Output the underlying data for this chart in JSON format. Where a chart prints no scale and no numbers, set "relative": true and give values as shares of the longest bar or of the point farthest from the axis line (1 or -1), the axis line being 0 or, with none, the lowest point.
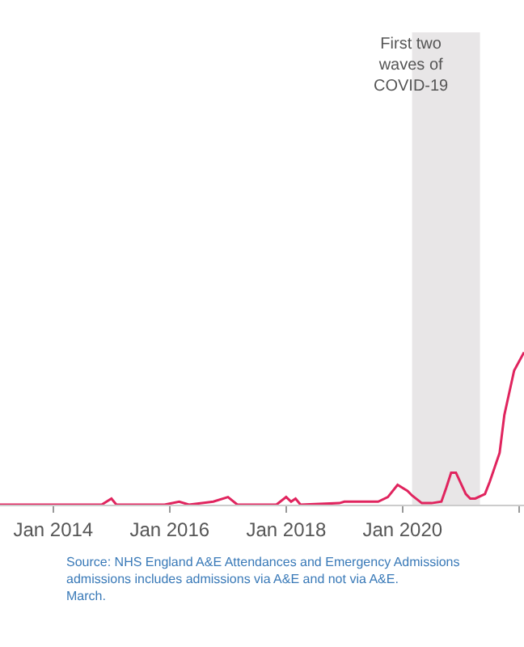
{
  "chart_data": {
    "type": "line",
    "relative": true,
    "x": [
      "2013-02",
      "2014-11",
      "2015-01",
      "2015-02",
      "2015-12",
      "2016-03",
      "2016-05",
      "2016-10",
      "2017-01",
      "2017-03",
      "2017-11",
      "2018-01",
      "2018-02",
      "2018-03",
      "2018-04",
      "2018-12",
      "2019-01",
      "2019-08",
      "2019-10",
      "2019-12",
      "2020-02",
      "2020-03",
      "2020-05",
      "2020-07",
      "2020-09",
      "2020-10",
      "2020-11",
      "2020-12",
      "2021-02",
      "2021-03",
      "2021-04",
      "2021-06",
      "2021-07",
      "2021-09",
      "2021-10",
      "2021-12",
      "2022-02"
    ],
    "series": [
      {
        "color": "#e0245e",
        "values": [
          0,
          0,
          0.04,
          0,
          0,
          0.02,
          0,
          0.02,
          0.05,
          0,
          0,
          0.05,
          0.02,
          0.04,
          0,
          0.01,
          0.02,
          0.02,
          0.05,
          0.13,
          0.09,
          0.06,
          0.01,
          0.01,
          0.02,
          0.11,
          0.21,
          0.21,
          0.07,
          0.04,
          0.04,
          0.07,
          0.15,
          0.34,
          0.59,
          0.88,
          1
        ]
      }
    ],
    "xlim": [
      "2013-02",
      "2022-02"
    ],
    "xticks": [
      {
        "value": "2014-01",
        "label": "Jan 2014"
      },
      {
        "value": "2016-01",
        "label": "Jan 2016"
      },
      {
        "value": "2018-01",
        "label": "Jan 2018"
      },
      {
        "value": "2020-01",
        "label": "Jan 2020"
      },
      {
        "value": "2022-01",
        "label": null
      }
    ],
    "bands": [
      {
        "axis": "x",
        "from": "2020-03",
        "to": "2021-05",
        "label": "First two\nwaves of\nCOVID-19",
        "color": "#e8e6e7"
      }
    ],
    "annotations": [
      "Source: NHS England A&E Attendances and Emergency Admissions\nadmissions includes admissions via A&E and not via A&E.\nMarch."
    ]
  }
}
